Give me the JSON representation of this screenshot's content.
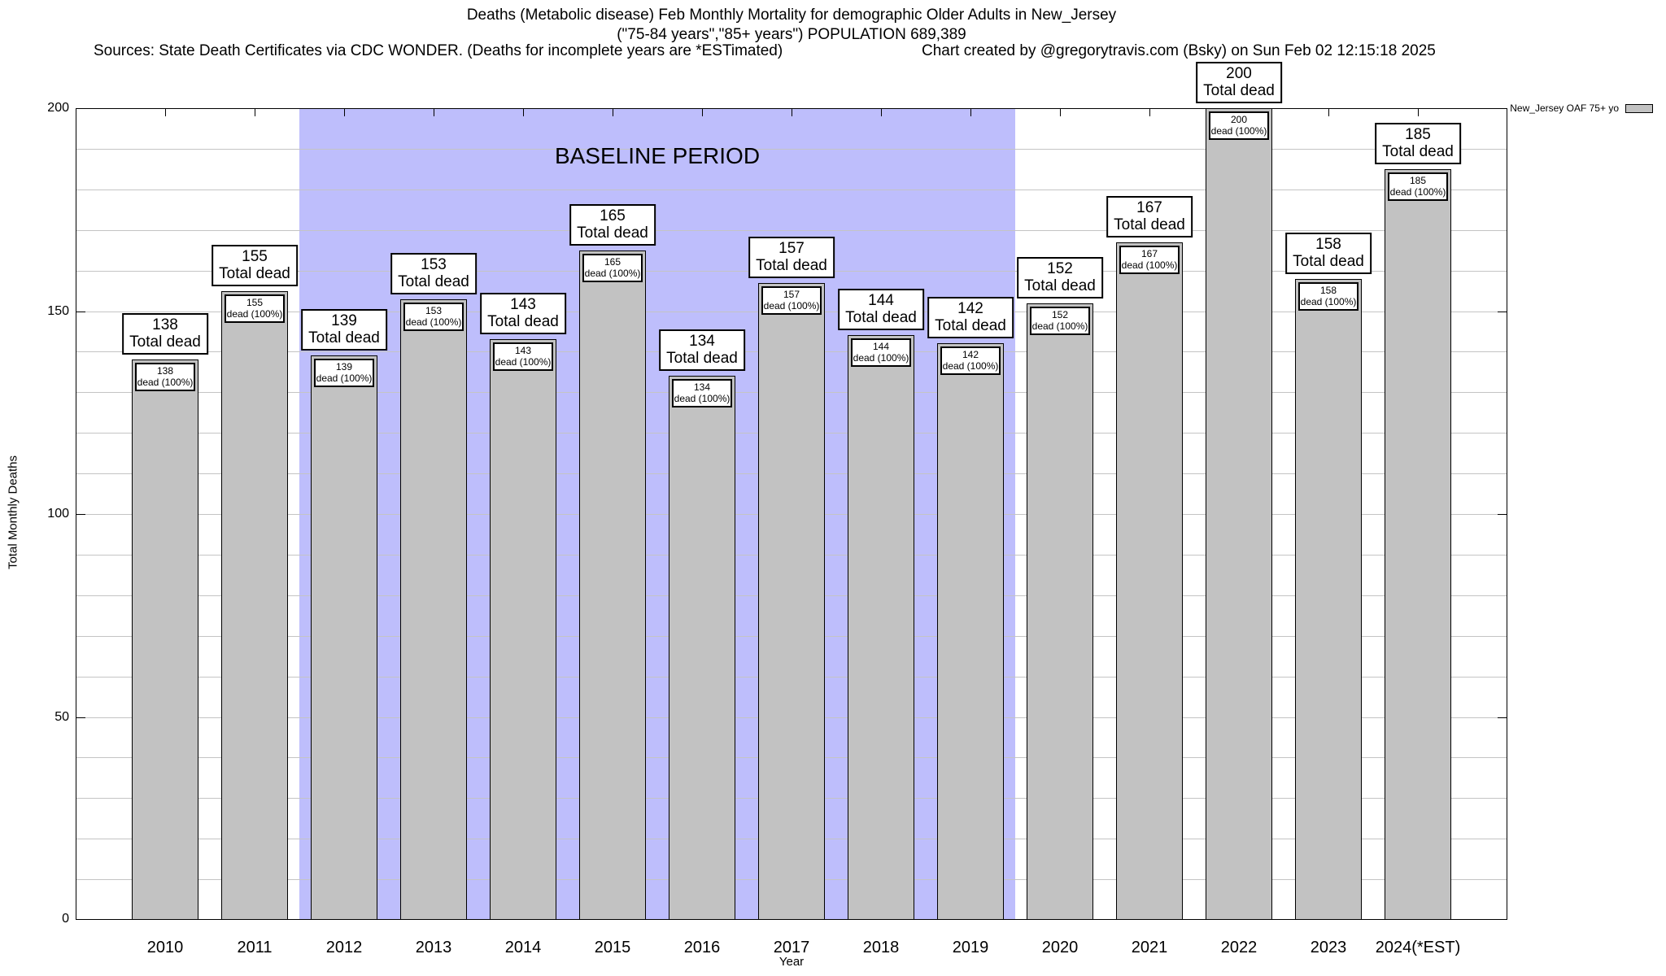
{
  "header": {
    "title_line1": "Deaths (Metabolic disease) Feb Monthly Mortality for demographic Older Adults in New_Jersey",
    "title_line2": "(\"75-84 years\",\"85+ years\") POPULATION 689,389",
    "sources": "Sources: State Death Certificates via CDC WONDER. (Deaths for incomplete years are *ESTimated)",
    "credit": "Chart created by @gregorytravis.com (Bsky) on Sun Feb 02 12:15:18 2025"
  },
  "legend": {
    "label": "New_Jersey OAF 75+ yo",
    "swatch_color": "#c2c2c2"
  },
  "axes": {
    "ylabel": "Total Monthly Deaths",
    "xlabel": "Year",
    "y_major_ticks": [
      0,
      50,
      100,
      150,
      200
    ],
    "y_minor_step": 10,
    "ylim": [
      0,
      200
    ],
    "x_domain": [
      2009,
      2025
    ]
  },
  "baseline_band": {
    "label": "BASELINE PERIOD",
    "start_year": 2011.5,
    "end_year": 2019.5,
    "color": "#bebefc"
  },
  "chart_data": {
    "type": "bar",
    "title": "Deaths (Metabolic disease) Feb Monthly Mortality for demographic Older Adults in New_Jersey",
    "subtitle": "(\"75-84 years\",\"85+ years\") POPULATION 689,389",
    "categories": [
      "2010",
      "2011",
      "2012",
      "2013",
      "2014",
      "2015",
      "2016",
      "2017",
      "2018",
      "2019",
      "2020",
      "2021",
      "2022",
      "2023",
      "2024(*EST)"
    ],
    "values": [
      138,
      155,
      139,
      153,
      143,
      165,
      134,
      157,
      144,
      142,
      152,
      167,
      200,
      158,
      185
    ],
    "series": [
      {
        "name": "New_Jersey OAF 75+ yo",
        "color": "#c2c2c2"
      }
    ],
    "bar_top_label_line2": "Total dead",
    "bar_inner_label_line2": "dead (100%)",
    "bar_width_years": 0.75,
    "xlabel": "Year",
    "ylabel": "Total Monthly Deaths",
    "ylim": [
      0,
      200
    ],
    "grid": "horizontal lines every 10 units",
    "legend_position": "top-right outside plot",
    "annotations": [
      {
        "type": "vspan",
        "label": "BASELINE PERIOD",
        "from": 2011.5,
        "to": 2019.5,
        "color": "#bebefc"
      }
    ]
  },
  "colors": {
    "bar_fill": "#c2c2c2",
    "bar_border": "#000000",
    "grid": "#c4c4c4",
    "band": "#bebefc",
    "background": "#ffffff"
  }
}
